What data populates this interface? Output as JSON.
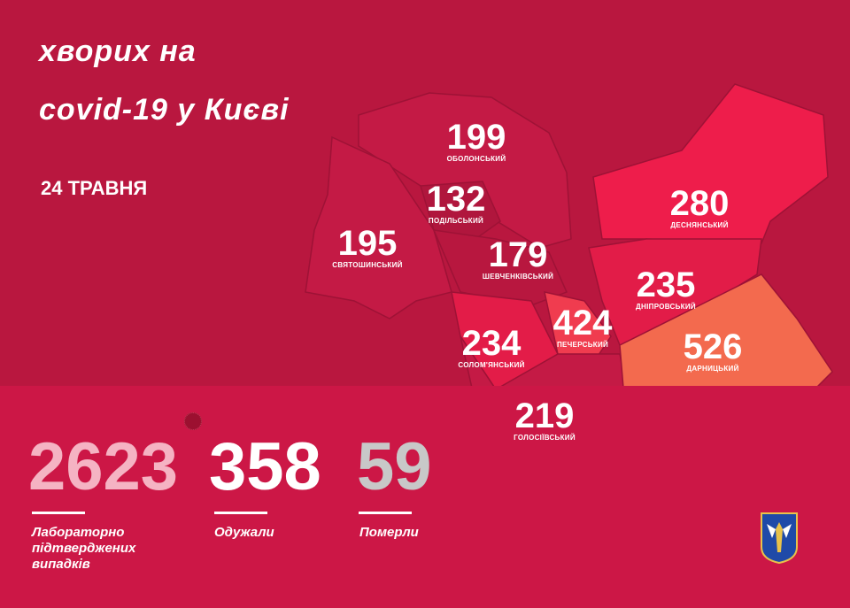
{
  "header": {
    "title_line1": "хворих на",
    "title_line2": "covid-19 у Києві",
    "date": "24 ТРАВНЯ"
  },
  "districts": [
    {
      "name": "ОБОЛОНСЬКИЙ",
      "value": "199",
      "color": "#c41a45"
    },
    {
      "name": "ПОДІЛЬСЬКИЙ",
      "value": "132",
      "color": "#b0163d"
    },
    {
      "name": "СВЯТОШИНСЬКИЙ",
      "value": "195",
      "color": "#c41a45"
    },
    {
      "name": "ШЕВЧЕНКІВСЬКИЙ",
      "value": "179",
      "color": "#b8173f"
    },
    {
      "name": "СОЛОМ'ЯНСЬКИЙ",
      "value": "234",
      "color": "#e31c48"
    },
    {
      "name": "ПЕЧЕРСЬКИЙ",
      "value": "424",
      "color": "#f03c4f"
    },
    {
      "name": "ГОЛОСІЇВСЬКИЙ",
      "value": "219",
      "color": "#c41a45"
    },
    {
      "name": "ДЕСНЯНСЬКИЙ",
      "value": "280",
      "color": "#ee1d4b"
    },
    {
      "name": "ДНІПРОВСЬКИЙ",
      "value": "235",
      "color": "#e21c48"
    },
    {
      "name": "ДАРНИЦЬКИЙ",
      "value": "526",
      "color": "#f36a4e"
    }
  ],
  "stats": [
    {
      "value": "2623",
      "label": "Лабораторно підтверджених випадків",
      "color": "#f5b3c3"
    },
    {
      "value": "358",
      "label": "Одужали",
      "color": "#ffffff"
    },
    {
      "value": "59",
      "label": "Померли",
      "color": "#c8c8c8"
    }
  ],
  "icons": {
    "virus": "virus-icon",
    "crest": "kyiv-coat-of-arms"
  }
}
